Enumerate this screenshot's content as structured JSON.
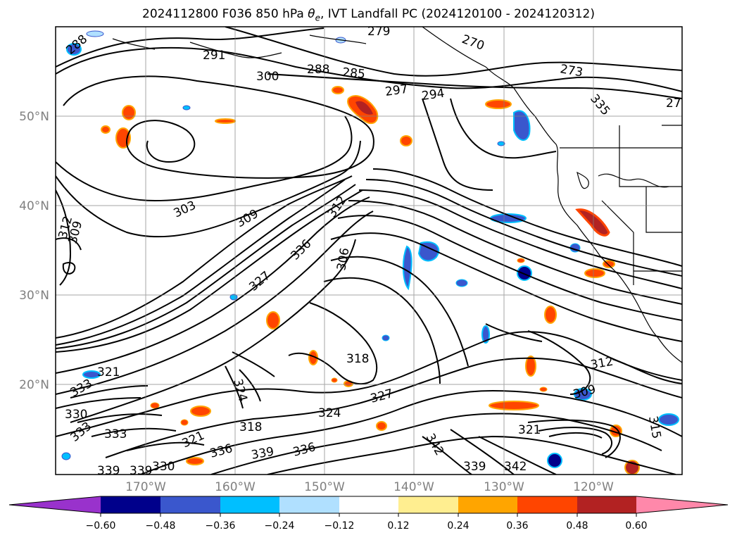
{
  "title": {
    "prefix": "2024112800 F036 850 hPa ",
    "theta": "θ",
    "sub": "e",
    "suffix": ", IVT Landfall PC (2024120100 - 2024120312)"
  },
  "map": {
    "projection": "PlateCarree",
    "lon_ticks": [
      "170°W",
      "160°W",
      "150°W",
      "140°W",
      "130°W",
      "120°W"
    ],
    "lat_ticks": [
      "50°N",
      "40°N",
      "30°N",
      "20°N"
    ],
    "grid": true,
    "contour_variable": "850 hPa theta-e (K)",
    "contour_labels": [
      "288",
      "291",
      "279",
      "270",
      "273",
      "27",
      "300",
      "288",
      "285",
      "297",
      "294",
      "303",
      "309",
      "312",
      "309",
      "327",
      "336",
      "312",
      "306",
      "318",
      "321",
      "333",
      "330",
      "333",
      "333",
      "321",
      "324",
      "318",
      "324",
      "327",
      "336",
      "339",
      "336",
      "339",
      "330",
      "339",
      "342",
      "339",
      "342",
      "321",
      "312",
      "309",
      "315",
      "335"
    ]
  },
  "colorbar": {
    "ticks": [
      "−0.60",
      "−0.48",
      "−0.36",
      "−0.24",
      "−0.12",
      "0.12",
      "0.24",
      "0.36",
      "0.48",
      "0.60"
    ],
    "colors": [
      "#9932cc",
      "#00008b",
      "#3a57cd",
      "#00bfff",
      "#b0e0ff",
      "#ffffff",
      "#ffee90",
      "#ffa500",
      "#ff4500",
      "#b22222",
      "#ff88aa"
    ],
    "extend": "both"
  }
}
